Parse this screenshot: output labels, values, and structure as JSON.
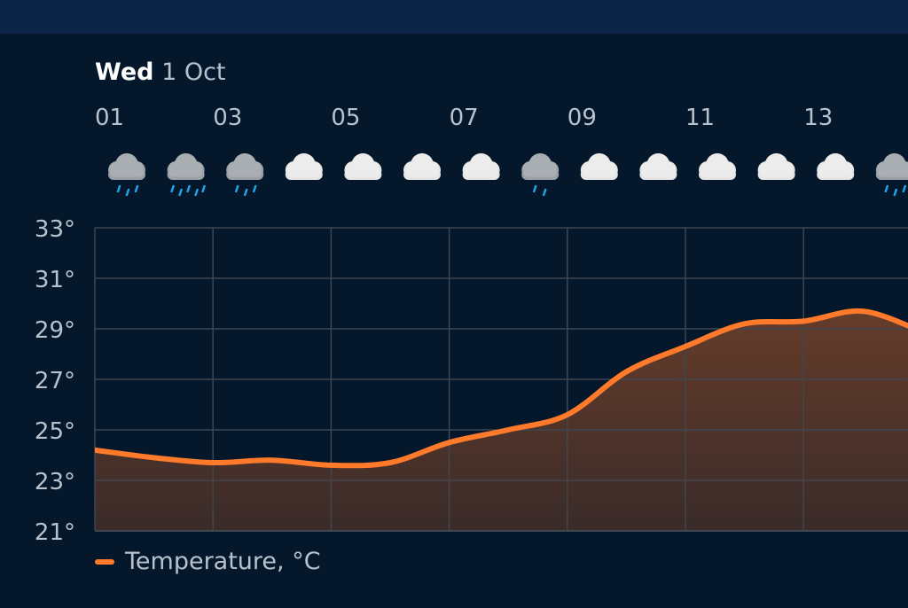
{
  "header": {
    "day": "Wed",
    "date": "1 Oct"
  },
  "colors": {
    "background": "#04172b",
    "topbar": "#0a2547",
    "line": "#ff7a2a",
    "grid": "#3f4650",
    "text": "#b8c2cd",
    "cloud": "#e6e6e6",
    "rain_cloud": "#9aa0a6",
    "rain": "#1fa3e8"
  },
  "chart_data": {
    "type": "area",
    "title": "",
    "xlabel": "",
    "ylabel": "",
    "x_tick_labels": [
      "01",
      "03",
      "05",
      "07",
      "09",
      "11",
      "13"
    ],
    "y_tick_labels": [
      "33°",
      "31°",
      "29°",
      "27°",
      "25°",
      "23°",
      "21°"
    ],
    "ylim": [
      21,
      33
    ],
    "grid": true,
    "legend": {
      "position": "bottom-left"
    },
    "series": [
      {
        "name": "Temperature, °C",
        "color": "#ff7a2a",
        "x": [
          "01",
          "02",
          "03",
          "04",
          "05",
          "06",
          "07",
          "08",
          "09",
          "10",
          "11",
          "12",
          "13",
          "14",
          "15"
        ],
        "values": [
          24.2,
          23.9,
          23.7,
          23.8,
          23.6,
          23.7,
          24.5,
          25.0,
          25.6,
          27.3,
          28.3,
          29.2,
          29.3,
          29.7,
          28.9
        ]
      }
    ],
    "weather_icons": [
      "light-rain-icon",
      "rain-icon",
      "light-rain-icon",
      "cloud-icon",
      "cloud-icon",
      "cloud-icon",
      "cloud-icon",
      "drizzle-icon",
      "cloud-icon",
      "cloud-icon",
      "cloud-icon",
      "cloud-icon",
      "cloud-icon",
      "light-rain-icon"
    ]
  }
}
